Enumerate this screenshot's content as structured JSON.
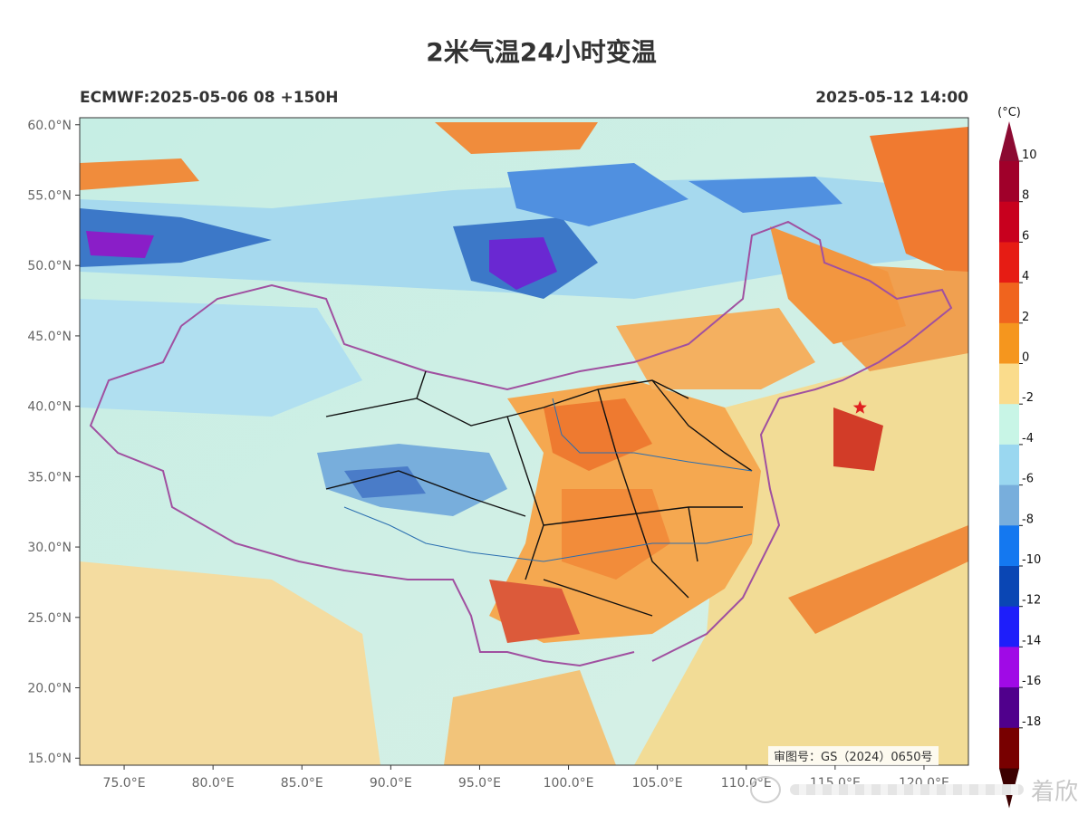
{
  "title": "2米气温24小时变温",
  "subtitle_left": "ECMWF:2025-05-06 08 +150H",
  "subtitle_right": "2025-05-12 14:00",
  "approval_text": "审图号：GS（2024）0650号",
  "watermark_text": "着欣",
  "map": {
    "lon_range": [
      72.5,
      122.5
    ],
    "lat_range": [
      14.5,
      60.5
    ],
    "lon_ticks": [
      "75.0°E",
      "80.0°E",
      "85.0°E",
      "90.0°E",
      "95.0°E",
      "100.0°E",
      "105.0°E",
      "110.0°E",
      "115.0°E",
      "120.0°E"
    ],
    "lat_ticks": [
      "60.0°N",
      "55.0°N",
      "50.0°N",
      "45.0°N",
      "40.0°N",
      "35.0°N",
      "30.0°N",
      "25.0°N",
      "20.0°N",
      "15.0°N"
    ],
    "marker": {
      "name": "Beijing",
      "lon": 116.4,
      "lat": 39.9,
      "icon": "star-icon",
      "color": "#e02020"
    }
  },
  "colorbar": {
    "unit": "(°C)",
    "labels": [
      "10",
      "8",
      "6",
      "4",
      "2",
      "0",
      "-2",
      "-4",
      "-6",
      "-8",
      "-10",
      "-12",
      "-14",
      "-16",
      "-18"
    ],
    "colors": [
      "#a0002a",
      "#c8001e",
      "#e61c14",
      "#f0641e",
      "#f5961e",
      "#fadc8c",
      "#c8f5e6",
      "#9ad7f0",
      "#78aedc",
      "#1478f0",
      "#0a46b4",
      "#1e1efa",
      "#a00ae6",
      "#50008c",
      "#780000"
    ],
    "top_color": "#8c0a32",
    "bottom_color": "#3c0000"
  }
}
